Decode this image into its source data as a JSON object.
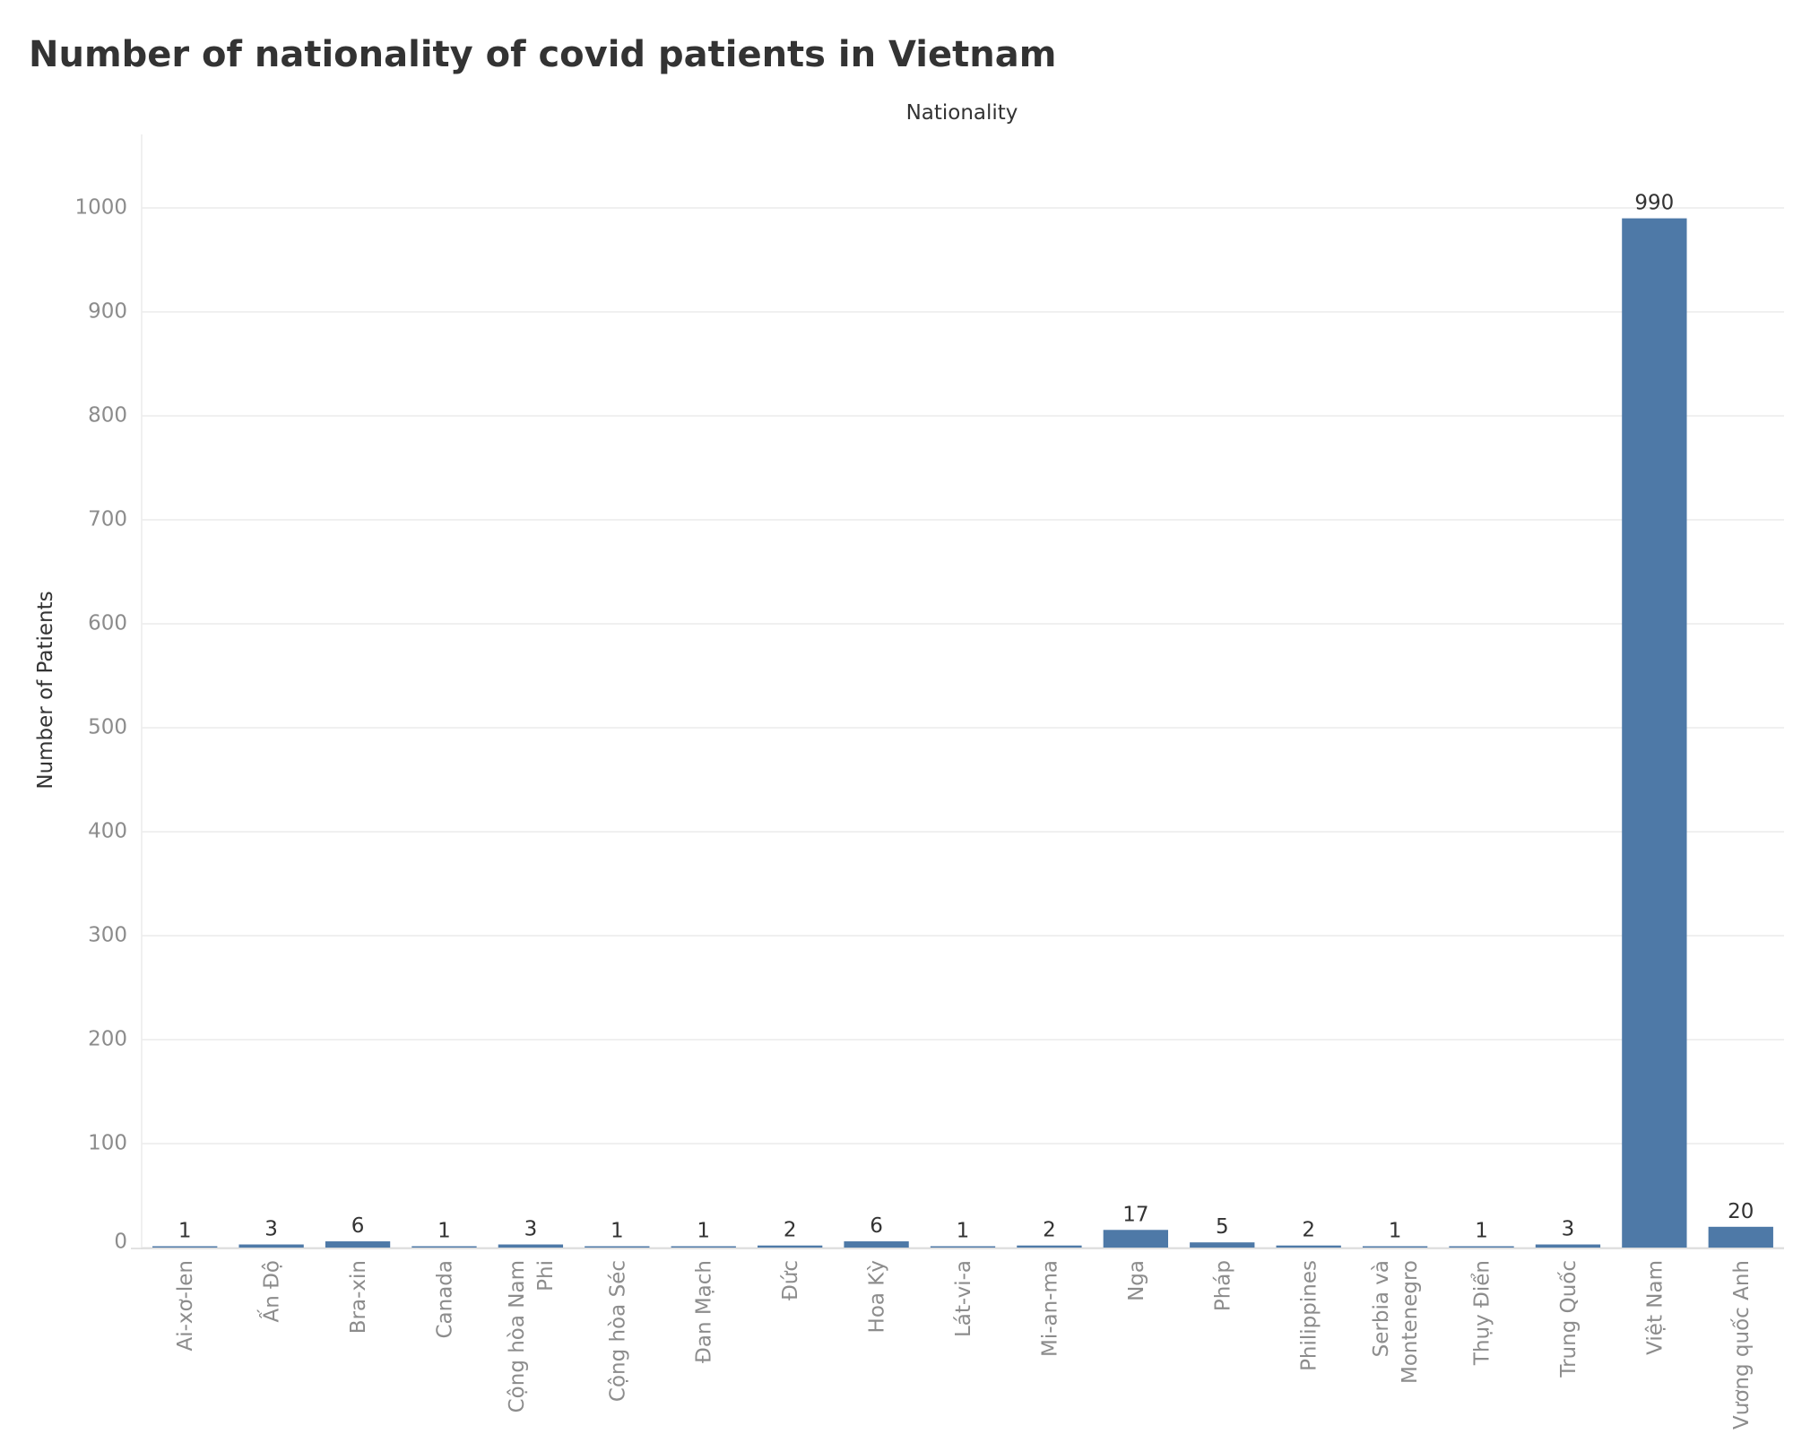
{
  "title": "Number of nationality of covid patients in Vietnam",
  "chart_data": {
    "type": "bar",
    "title": "Number of nationality of covid patients in Vietnam",
    "xlabel": "Nationality",
    "ylabel": "Number of Patients",
    "categories": [
      "Ai-xơ-len",
      "Ấn Độ",
      "Bra-xin",
      "Canada",
      "Cộng hòa Nam Phi",
      "Cộng hòa Séc",
      "Đan Mạch",
      "Đức",
      "Hoa Kỳ",
      "Lát-vi-a",
      "Mi-an-ma",
      "Nga",
      "Pháp",
      "Philippines",
      "Serbia và Montenegro",
      "Thụy Điển",
      "Trung Quốc",
      "Việt Nam",
      "Vương quốc Anh"
    ],
    "category_label_lines": [
      [
        "Ai-xơ-len"
      ],
      [
        "Ấn Độ"
      ],
      [
        "Bra-xin"
      ],
      [
        "Canada"
      ],
      [
        "Cộng hòa Nam",
        "Phi"
      ],
      [
        "Cộng hòa Séc"
      ],
      [
        "Đan Mạch"
      ],
      [
        "Đức"
      ],
      [
        "Hoa Kỳ"
      ],
      [
        "Lát-vi-a"
      ],
      [
        "Mi-an-ma"
      ],
      [
        "Nga"
      ],
      [
        "Pháp"
      ],
      [
        "Philippines"
      ],
      [
        "Serbia và",
        "Montenegro"
      ],
      [
        "Thụy Điển"
      ],
      [
        "Trung Quốc"
      ],
      [
        "Việt Nam"
      ],
      [
        "Vương quốc Anh"
      ]
    ],
    "values": [
      1,
      3,
      6,
      1,
      3,
      1,
      1,
      2,
      6,
      1,
      2,
      17,
      5,
      2,
      1,
      1,
      3,
      990,
      20
    ],
    "ylim": [
      0,
      1050
    ],
    "yticks": [
      0,
      100,
      200,
      300,
      400,
      500,
      600,
      700,
      800,
      900,
      1000
    ],
    "grid": true,
    "bar_color": "#4e79a7"
  }
}
